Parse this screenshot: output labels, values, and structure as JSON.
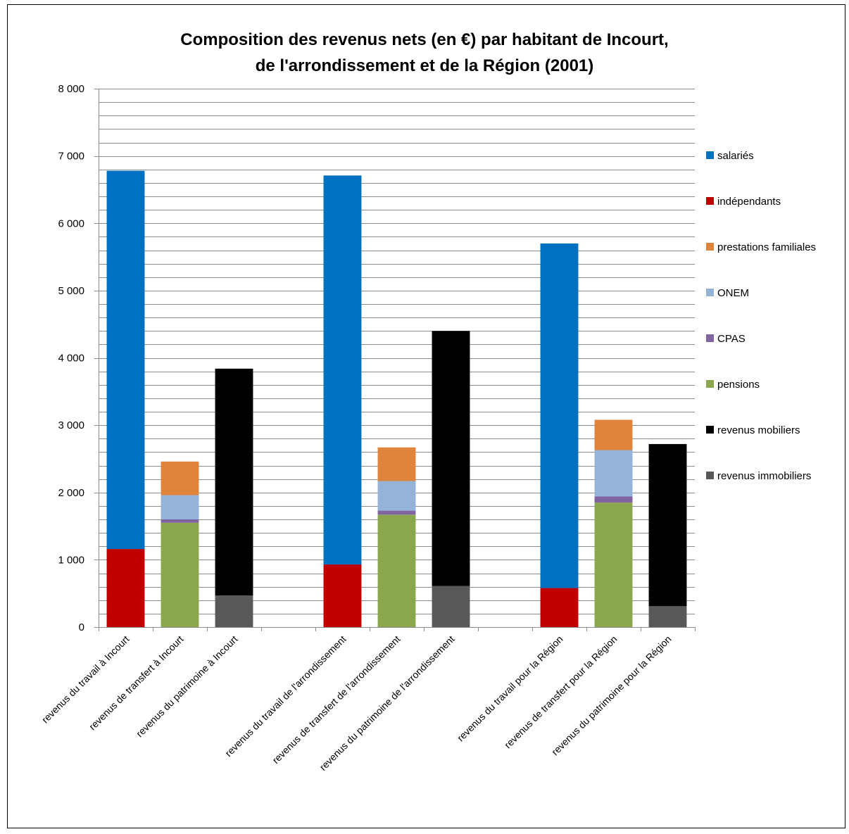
{
  "chart_data": {
    "type": "bar",
    "stacked": true,
    "title": "Composition  des revenus nets (en €) par habitant de Incourt,",
    "subtitle": "de l'arrondissement  et de la Région (2001)",
    "xlabel": "",
    "ylabel": "",
    "ylim": [
      0,
      8000
    ],
    "yticks": [
      {
        "value": 0,
        "label": "0"
      },
      {
        "value": 1000,
        "label": "1 000"
      },
      {
        "value": 2000,
        "label": "2 000"
      },
      {
        "value": 3000,
        "label": "3 000"
      },
      {
        "value": 4000,
        "label": "4 000"
      },
      {
        "value": 5000,
        "label": "5 000"
      },
      {
        "value": 6000,
        "label": "6 000"
      },
      {
        "value": 7000,
        "label": "7 000"
      },
      {
        "value": 8000,
        "label": "8 000"
      }
    ],
    "grid": true,
    "legend_position": "right",
    "categories": [
      "revenus du travail à Incourt",
      "revenus de transfert à Incourt",
      "revenus du patrimoine à Incourt",
      "",
      "revenus du travail de l'arrondissement",
      "revenus de transfert de l'arrondissement",
      "revenus du patrimoine de l'arrondissement",
      "",
      "revenus du travail pour la Région",
      "revenus de transfert pour la Région",
      "revenus du patrimoine pour la Région"
    ],
    "series": [
      {
        "name": "salariés",
        "color": "#0070C0",
        "values": [
          5620,
          0,
          0,
          0,
          5780,
          0,
          0,
          0,
          5120,
          0,
          0
        ]
      },
      {
        "name": "indépendants",
        "color": "#C00000",
        "values": [
          1160,
          0,
          0,
          0,
          930,
          0,
          0,
          0,
          580,
          0,
          0
        ]
      },
      {
        "name": "prestations familiales",
        "color": "#E0843C",
        "values": [
          0,
          500,
          0,
          0,
          0,
          500,
          0,
          0,
          0,
          450,
          0
        ]
      },
      {
        "name": "ONEM",
        "color": "#95B3D7",
        "values": [
          0,
          360,
          0,
          0,
          0,
          440,
          0,
          0,
          0,
          690,
          0
        ]
      },
      {
        "name": "CPAS",
        "color": "#8064A2",
        "values": [
          0,
          50,
          0,
          0,
          0,
          60,
          0,
          0,
          0,
          90,
          0
        ]
      },
      {
        "name": "pensions",
        "color": "#8AA74E",
        "values": [
          0,
          1550,
          0,
          0,
          0,
          1670,
          0,
          0,
          0,
          1850,
          0
        ]
      },
      {
        "name": "revenus mobiliers",
        "color": "#000000",
        "values": [
          0,
          0,
          3370,
          0,
          0,
          0,
          3790,
          0,
          0,
          0,
          2410
        ]
      },
      {
        "name": "revenus immobiliers",
        "color": "#595959",
        "values": [
          0,
          0,
          470,
          0,
          0,
          0,
          610,
          0,
          0,
          0,
          310
        ]
      }
    ],
    "stack_order": [
      "indépendants",
      "salariés",
      "pensions",
      "CPAS",
      "ONEM",
      "prestations familiales",
      "revenus immobiliers",
      "revenus mobiliers"
    ]
  }
}
